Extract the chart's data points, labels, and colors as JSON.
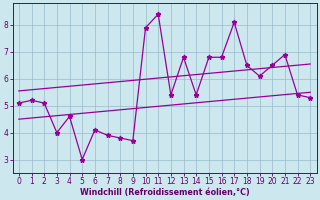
{
  "xlabel": "Windchill (Refroidissement éolien,°C)",
  "x_data": [
    0,
    1,
    2,
    3,
    4,
    5,
    6,
    7,
    8,
    9,
    10,
    11,
    12,
    13,
    14,
    15,
    16,
    17,
    18,
    19,
    20,
    21,
    22,
    23
  ],
  "y_main": [
    5.1,
    5.2,
    5.1,
    4.0,
    4.6,
    3.0,
    4.1,
    3.9,
    3.8,
    3.7,
    7.9,
    8.4,
    5.4,
    6.8,
    5.4,
    6.8,
    6.8,
    8.1,
    6.5,
    6.1,
    6.5,
    6.9,
    5.4,
    5.3
  ],
  "reg_upper_start": 5.55,
  "reg_upper_end": 6.55,
  "reg_lower_start": 4.5,
  "reg_lower_end": 5.5,
  "line_color": "#990099",
  "bg_color": "#cce8ee",
  "grid_color": "#99bbcc",
  "axis_color": "#660066",
  "text_color": "#660066",
  "ylim": [
    2.5,
    8.8
  ],
  "yticks": [
    3,
    4,
    5,
    6,
    7,
    8
  ],
  "xticks": [
    0,
    1,
    2,
    3,
    4,
    5,
    6,
    7,
    8,
    9,
    10,
    11,
    12,
    13,
    14,
    15,
    16,
    17,
    18,
    19,
    20,
    21,
    22,
    23
  ],
  "tick_fontsize": 5.5,
  "xlabel_fontsize": 5.8
}
